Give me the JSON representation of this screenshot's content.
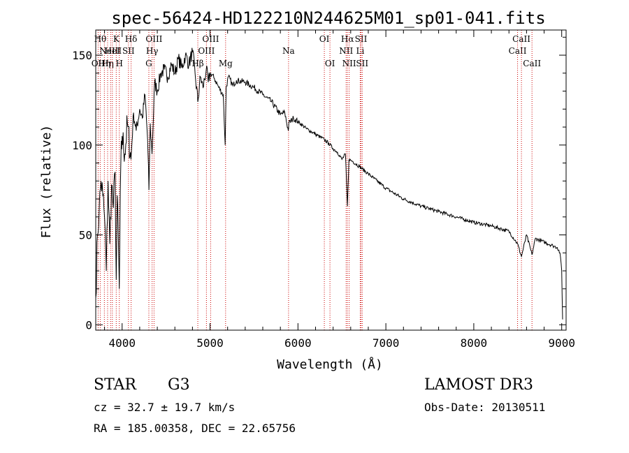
{
  "chart_data": {
    "type": "line",
    "title": "spec-56424-HD122210N244625M01_sp01-041.fits",
    "xlabel": "Wavelength (Å)",
    "ylabel": "Flux (relative)",
    "xlim": [
      3700,
      9050
    ],
    "ylim": [
      -3,
      164
    ],
    "xticks": [
      4000,
      5000,
      6000,
      7000,
      8000,
      9000
    ],
    "yticks": [
      0,
      50,
      100,
      150
    ],
    "grid": false,
    "series": [
      {
        "name": "flux",
        "x": [
          3700,
          3720,
          3740,
          3760,
          3780,
          3800,
          3820,
          3840,
          3860,
          3880,
          3900,
          3920,
          3933,
          3945,
          3968,
          3985,
          4000,
          4030,
          4060,
          4101,
          4130,
          4160,
          4200,
          4230,
          4260,
          4290,
          4305,
          4320,
          4340,
          4370,
          4400,
          4440,
          4480,
          4520,
          4560,
          4600,
          4640,
          4680,
          4720,
          4760,
          4800,
          4830,
          4861,
          4890,
          4920,
          4957,
          4980,
          5007,
          5050,
          5100,
          5150,
          5172,
          5183,
          5210,
          5260,
          5300,
          5400,
          5500,
          5600,
          5700,
          5800,
          5850,
          5890,
          5896,
          5950,
          6000,
          6100,
          6200,
          6300,
          6350,
          6400,
          6450,
          6500,
          6540,
          6563,
          6580,
          6620,
          6700,
          6800,
          6900,
          7000,
          7200,
          7400,
          7600,
          7800,
          8000,
          8200,
          8400,
          8498,
          8542,
          8600,
          8662,
          8700,
          8800,
          8900,
          8950,
          8980,
          9000,
          9010
        ],
        "y": [
          15,
          50,
          65,
          80,
          72,
          60,
          30,
          80,
          45,
          78,
          65,
          85,
          25,
          72,
          20,
          90,
          105,
          95,
          112,
          92,
          118,
          108,
          120,
          115,
          128,
          103,
          75,
          112,
          95,
          135,
          130,
          140,
          142,
          138,
          145,
          140,
          148,
          143,
          150,
          145,
          152,
          140,
          124,
          138,
          132,
          142,
          135,
          140,
          137,
          132,
          128,
          100,
          132,
          138,
          133,
          136,
          135,
          132,
          128,
          124,
          117,
          118,
          108,
          112,
          115,
          113,
          109,
          106,
          103,
          101,
          98,
          96,
          92,
          95,
          66,
          92,
          91,
          88,
          84,
          80,
          76,
          70,
          66,
          63,
          60,
          57,
          55,
          52,
          45,
          38,
          50,
          39,
          48,
          46,
          44,
          43,
          40,
          30,
          3
        ]
      }
    ],
    "lines": [
      {
        "wavelength": 3727,
        "label": "OII",
        "row": 3
      },
      {
        "wavelength": 3751,
        "label": "Hθ",
        "row": 1
      },
      {
        "wavelength": 3798,
        "label": "Hη",
        "row": 3
      },
      {
        "wavelength": 3835,
        "label": "Hη",
        "row": 3
      },
      {
        "wavelength": 3869,
        "label": "NeIII",
        "row": 2
      },
      {
        "wavelength": 3889,
        "label": "HeI",
        "row": 2
      },
      {
        "wavelength": 3933,
        "label": "K",
        "row": 1
      },
      {
        "wavelength": 3968,
        "label": "H",
        "row": 3
      },
      {
        "wavelength": 4072,
        "label": "SII",
        "row": 2
      },
      {
        "wavelength": 4102,
        "label": "Hδ",
        "row": 1
      },
      {
        "wavelength": 4304,
        "label": "G",
        "row": 3
      },
      {
        "wavelength": 4341,
        "label": "Hγ",
        "row": 2
      },
      {
        "wavelength": 4363,
        "label": "OIII",
        "row": 1
      },
      {
        "wavelength": 4861,
        "label": "Hβ",
        "row": 3
      },
      {
        "wavelength": 4959,
        "label": "OIII",
        "row": 2
      },
      {
        "wavelength": 5007,
        "label": "OIII",
        "row": 1
      },
      {
        "wavelength": 5177,
        "label": "Mg",
        "row": 3
      },
      {
        "wavelength": 5893,
        "label": "Na",
        "row": 2
      },
      {
        "wavelength": 6300,
        "label": "OI",
        "row": 1
      },
      {
        "wavelength": 6364,
        "label": "OI",
        "row": 3
      },
      {
        "wavelength": 6548,
        "label": "NII",
        "row": 2
      },
      {
        "wavelength": 6563,
        "label": "Hα",
        "row": 1
      },
      {
        "wavelength": 6583,
        "label": "NII",
        "row": 3
      },
      {
        "wavelength": 6708,
        "label": "Li",
        "row": 2
      },
      {
        "wavelength": 6717,
        "label": "SII",
        "row": 1
      },
      {
        "wavelength": 6731,
        "label": "SII",
        "row": 3
      },
      {
        "wavelength": 8498,
        "label": "CaII",
        "row": 2
      },
      {
        "wavelength": 8542,
        "label": "CaII",
        "row": 1
      },
      {
        "wavelength": 8662,
        "label": "CaII",
        "row": 3
      }
    ],
    "line_color": "#cc0000"
  },
  "info": {
    "object_class": "STAR",
    "subclass": "G3",
    "survey": "LAMOST DR3",
    "redshift": "cz = 32.7 ± 19.7 km/s",
    "obs_date": "Obs-Date: 20130511",
    "coords": "RA = 185.00358, DEC =  22.65756"
  }
}
